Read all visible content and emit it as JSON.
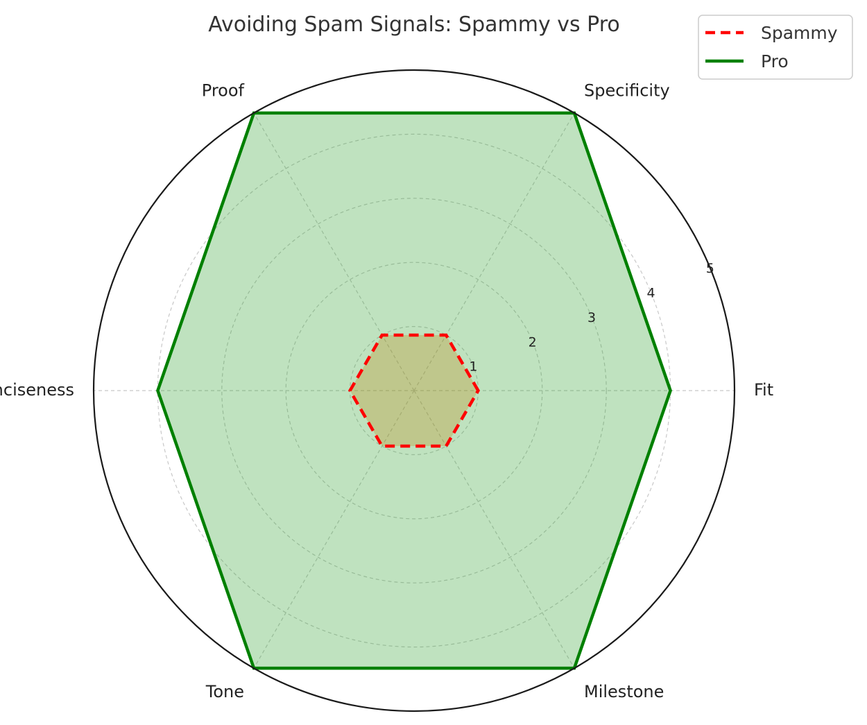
{
  "chart_data": {
    "type": "radar",
    "title": "Avoiding Spam Signals: Spammy vs Pro",
    "categories": [
      "Fit",
      "Specificity",
      "Proof",
      "Conciseness",
      "Tone",
      "Milestone"
    ],
    "rlim": [
      0,
      5
    ],
    "rticks": [
      1,
      2,
      3,
      4,
      5
    ],
    "grid": true,
    "legend_position": "top-right",
    "series": [
      {
        "name": "Spammy",
        "values": [
          1,
          1,
          1,
          1,
          1,
          1
        ],
        "color": "#ff0000",
        "line_style": "dashed",
        "fill_color": "#ff7f0e"
      },
      {
        "name": "Pro",
        "values": [
          4,
          5,
          5,
          4,
          5,
          5
        ],
        "color": "#008000",
        "line_style": "solid",
        "fill_color": "#2ca02c"
      }
    ]
  }
}
